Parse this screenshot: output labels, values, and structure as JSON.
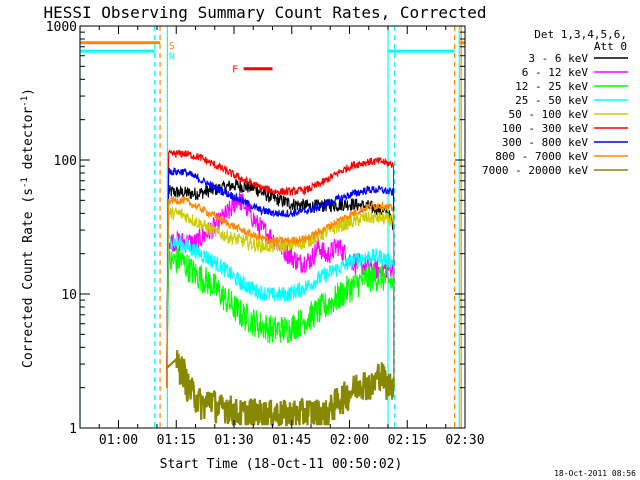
{
  "chart_data": {
    "type": "line",
    "title": "HESSI Observing Summary Count Rates, Corrected",
    "xlabel": "Start Time (18-Oct-11 00:50:02)",
    "ylabel_main": "Corrected Count Rate (s",
    "ylabel_sup1": "-1",
    "ylabel_mid": " detector",
    "ylabel_sup2": "-1",
    "ylabel_end": ")",
    "yscale": "log",
    "ylim": [
      1,
      1000
    ],
    "xlim_min": [
      50.0,
      150.0
    ],
    "x_ticks": [
      {
        "min": 60,
        "label": "01:00"
      },
      {
        "min": 75,
        "label": "01:15"
      },
      {
        "min": 90,
        "label": "01:30"
      },
      {
        "min": 105,
        "label": "01:45"
      },
      {
        "min": 120,
        "label": "02:00"
      },
      {
        "min": 135,
        "label": "02:15"
      },
      {
        "min": 150,
        "label": "02:30"
      }
    ],
    "y_ticks": [
      {
        "value": 1,
        "label": "1"
      },
      {
        "value": 10,
        "label": "10"
      },
      {
        "value": 100,
        "label": "100"
      },
      {
        "value": 1000,
        "label": "1000"
      }
    ],
    "legend_title": [
      "Det 1,3,4,5,6,",
      "Att 0"
    ],
    "legend_position": "right",
    "series": [
      {
        "name": "3 - 6 keV",
        "color": "#000000",
        "points": [
          [
            72.5,
            2
          ],
          [
            73,
            58
          ],
          [
            80,
            56
          ],
          [
            85,
            60
          ],
          [
            90,
            65
          ],
          [
            95,
            62
          ],
          [
            100,
            52
          ],
          [
            105,
            47
          ],
          [
            110,
            45
          ],
          [
            115,
            46
          ],
          [
            120,
            47
          ],
          [
            125,
            45
          ],
          [
            130,
            40
          ],
          [
            131.5,
            32
          ]
        ]
      },
      {
        "name": "6 - 12 keV",
        "color": "#ff00ff",
        "points": [
          [
            72.5,
            2
          ],
          [
            73,
            25
          ],
          [
            80,
            24
          ],
          [
            85,
            32
          ],
          [
            89,
            42
          ],
          [
            91,
            52
          ],
          [
            93,
            45
          ],
          [
            96,
            33
          ],
          [
            100,
            26
          ],
          [
            104,
            20
          ],
          [
            107,
            17
          ],
          [
            110,
            18
          ],
          [
            112,
            23
          ],
          [
            114,
            19
          ],
          [
            117,
            23
          ],
          [
            120,
            18
          ],
          [
            124,
            16
          ],
          [
            128,
            15
          ],
          [
            131.5,
            16
          ]
        ]
      },
      {
        "name": "12 - 25 keV",
        "color": "#00ff00",
        "points": [
          [
            72.5,
            2
          ],
          [
            73,
            17
          ],
          [
            76,
            18
          ],
          [
            80,
            14
          ],
          [
            84,
            12
          ],
          [
            88,
            9
          ],
          [
            92,
            7
          ],
          [
            96,
            6
          ],
          [
            100,
            5.4
          ],
          [
            104,
            5.5
          ],
          [
            108,
            6.3
          ],
          [
            112,
            7.5
          ],
          [
            116,
            9
          ],
          [
            120,
            11
          ],
          [
            124,
            13
          ],
          [
            128,
            13.5
          ],
          [
            131.5,
            12
          ]
        ]
      },
      {
        "name": "25 - 50 keV",
        "color": "#00ffff",
        "points": [
          [
            72.5,
            2
          ],
          [
            73,
            25
          ],
          [
            76,
            24
          ],
          [
            80,
            21
          ],
          [
            84,
            18
          ],
          [
            88,
            15
          ],
          [
            92,
            12
          ],
          [
            96,
            10.5
          ],
          [
            100,
            9.8
          ],
          [
            104,
            10
          ],
          [
            108,
            11
          ],
          [
            112,
            13
          ],
          [
            116,
            15
          ],
          [
            120,
            17
          ],
          [
            124,
            19
          ],
          [
            128,
            19
          ],
          [
            131.5,
            17
          ]
        ]
      },
      {
        "name": "50 - 100 keV",
        "color": "#cccc00",
        "points": [
          [
            72.5,
            2
          ],
          [
            73,
            40
          ],
          [
            76,
            40
          ],
          [
            80,
            35
          ],
          [
            84,
            30
          ],
          [
            88,
            27
          ],
          [
            92,
            25
          ],
          [
            96,
            23
          ],
          [
            100,
            22.5
          ],
          [
            104,
            23
          ],
          [
            108,
            24
          ],
          [
            112,
            27
          ],
          [
            116,
            31
          ],
          [
            120,
            34
          ],
          [
            124,
            37
          ],
          [
            128,
            37
          ],
          [
            131.5,
            35
          ]
        ]
      },
      {
        "name": "100 - 300 keV",
        "color": "#ff0000",
        "points": [
          [
            72.5,
            2
          ],
          [
            73,
            110
          ],
          [
            77,
            112
          ],
          [
            81,
            105
          ],
          [
            85,
            92
          ],
          [
            89,
            80
          ],
          [
            93,
            70
          ],
          [
            97,
            62
          ],
          [
            101,
            58
          ],
          [
            105,
            58
          ],
          [
            109,
            60
          ],
          [
            113,
            68
          ],
          [
            117,
            80
          ],
          [
            121,
            92
          ],
          [
            125,
            97
          ],
          [
            128,
            98
          ],
          [
            131.5,
            92
          ]
        ]
      },
      {
        "name": "300 - 800 keV",
        "color": "#0000ff",
        "points": [
          [
            72.5,
            2
          ],
          [
            73,
            82
          ],
          [
            77,
            82
          ],
          [
            81,
            72
          ],
          [
            85,
            62
          ],
          [
            89,
            55
          ],
          [
            93,
            48
          ],
          [
            97,
            42
          ],
          [
            101,
            40
          ],
          [
            105,
            40
          ],
          [
            109,
            42
          ],
          [
            113,
            46
          ],
          [
            117,
            51
          ],
          [
            121,
            56
          ],
          [
            125,
            60
          ],
          [
            128,
            60
          ],
          [
            131.5,
            57
          ]
        ]
      },
      {
        "name": "800 - 7000 keV",
        "color": "#ff8800",
        "points": [
          [
            72.5,
            2
          ],
          [
            73,
            50
          ],
          [
            77,
            50
          ],
          [
            81,
            44
          ],
          [
            85,
            38
          ],
          [
            89,
            33
          ],
          [
            93,
            29
          ],
          [
            97,
            26
          ],
          [
            101,
            25
          ],
          [
            105,
            25
          ],
          [
            109,
            26
          ],
          [
            113,
            30
          ],
          [
            117,
            35
          ],
          [
            121,
            40
          ],
          [
            125,
            45
          ],
          [
            128,
            46
          ],
          [
            131.5,
            43
          ]
        ]
      },
      {
        "name": "7000 - 20000 keV",
        "color": "#888800",
        "points": [
          [
            72.5,
            2.8
          ],
          [
            75,
            3
          ],
          [
            77,
            2.6
          ],
          [
            78,
            2.0
          ],
          [
            80,
            1.7
          ],
          [
            82,
            1.45
          ],
          [
            84,
            1.65
          ],
          [
            86,
            1.35
          ],
          [
            88,
            1.45
          ],
          [
            90,
            1.3
          ],
          [
            92,
            1.25
          ],
          [
            94,
            1.3
          ],
          [
            98,
            1.25
          ],
          [
            104,
            1.25
          ],
          [
            110,
            1.3
          ],
          [
            114,
            1.25
          ],
          [
            117,
            1.6
          ],
          [
            120,
            1.8
          ],
          [
            123,
            2.2
          ],
          [
            126,
            2.0
          ],
          [
            128,
            2.6
          ],
          [
            130,
            2.0
          ],
          [
            131.5,
            2.2
          ]
        ]
      }
    ],
    "annotations": [
      {
        "label": "S",
        "color": "#ff8800",
        "x_min": 73.1,
        "y": 720
      },
      {
        "label": "N",
        "color": "#00ffff",
        "x_min": 73.1,
        "y": 600
      },
      {
        "label": "F",
        "color": "#ff0000",
        "x_min": 89.5,
        "y": 480
      }
    ],
    "flare_bar": {
      "color": "#ff0000",
      "x_start": 92.5,
      "x_end": 100.0,
      "y": 480
    },
    "flags": {
      "saa": {
        "color": "#ff8800",
        "level": 750,
        "intervals": [
          [
            50.0,
            70.8
          ],
          [
            148.5,
            150.0
          ]
        ],
        "edges_dashed": [
          70.8,
          147.3
        ],
        "edges_solid": [
          149.0
        ]
      },
      "night": {
        "color": "#00ffff",
        "level": 650,
        "intervals": [
          [
            50.0,
            69.4
          ],
          [
            130.0,
            147.3
          ]
        ],
        "edges_dashed": [
          69.4,
          131.7
        ],
        "edges_solid": [
          50.0,
          72.7,
          130.0,
          148.5
        ]
      }
    },
    "timestamp": "18-Oct-2011 08:56"
  }
}
